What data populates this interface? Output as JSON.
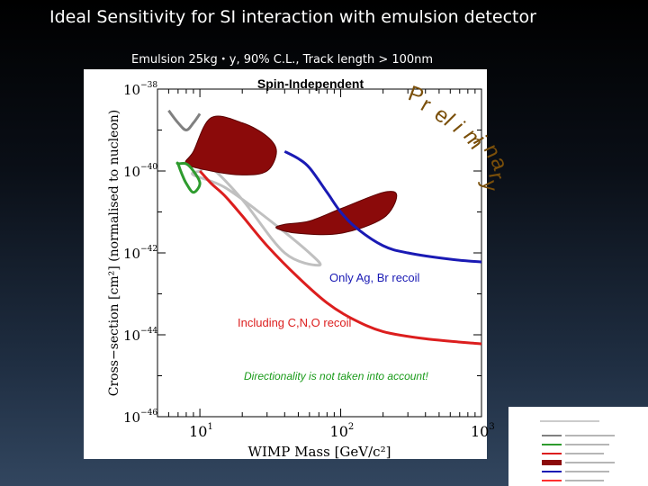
{
  "slide": {
    "title": "Ideal Sensitivity for SI interaction with emulsion detector",
    "subtitle": "Emulsion 25kg・y, 90% C.L., Track length > 100nm"
  },
  "chart_data": {
    "type": "line",
    "title": "Spin-Independent",
    "stamp": "Preliminary",
    "xlabel": "WIMP Mass [GeV/c²]",
    "ylabel": "Cross−section [cm²] (normalised to nucleon)",
    "x_scale": "log",
    "y_scale": "log",
    "xlim": [
      5,
      1000
    ],
    "ylim": [
      1e-46,
      1e-38
    ],
    "x_ticks": [
      {
        "base": "10",
        "exp": "1",
        "value": 10
      },
      {
        "base": "10",
        "exp": "2",
        "value": 100
      },
      {
        "base": "10",
        "exp": "3",
        "value": 1000
      }
    ],
    "y_ticks": [
      {
        "base": "10",
        "exp": "−38",
        "value": 1e-38
      },
      {
        "base": "10",
        "exp": "−40",
        "value": 1e-40
      },
      {
        "base": "10",
        "exp": "−42",
        "value": 1e-42
      },
      {
        "base": "10",
        "exp": "−44",
        "value": 1e-44
      },
      {
        "base": "10",
        "exp": "−46",
        "value": 1e-46
      }
    ],
    "series": [
      {
        "color": "#1a1ab4",
        "x": [
          40,
          50,
          60,
          80,
          100,
          130,
          200,
          300,
          600,
          1000
        ],
        "y": [
          3e-40,
          2e-40,
          1.2e-40,
          3e-41,
          1e-41,
          4e-42,
          1.5e-42,
          1e-42,
          7e-43,
          6e-43
        ]
      },
      {
        "color": "#dc1e1e",
        "x": [
          10,
          12,
          15,
          20,
          30,
          50,
          80,
          120,
          200,
          400,
          1000
        ],
        "y": [
          1e-40,
          5e-41,
          2.5e-41,
          8e-42,
          1.5e-42,
          2.5e-43,
          6e-44,
          2.5e-44,
          1.2e-44,
          8e-45,
          6e-45
        ]
      },
      {
        "color": "#808080",
        "x": [
          6,
          7,
          8,
          9,
          10
        ],
        "y": [
          3e-39,
          1.5e-39,
          1e-39,
          1.5e-39,
          2.5e-39
        ]
      },
      {
        "color": "#2e9b2e",
        "x": [
          7,
          7.5,
          8,
          9,
          10,
          9,
          8,
          7
        ],
        "y": [
          1.5e-40,
          8e-41,
          5e-41,
          3e-41,
          5e-41,
          1e-40,
          1.5e-40,
          1.5e-40
        ]
      }
    ],
    "regions": [
      {
        "color": "#8b0a0a",
        "x": [
          9,
          12,
          20,
          30,
          35,
          30,
          20,
          12,
          8
        ],
        "y": [
          3e-40,
          2e-39,
          1.5e-39,
          7e-40,
          3e-40,
          1e-40,
          8e-41,
          1e-40,
          1.5e-40
        ]
      },
      {
        "color": "#8b0a0a",
        "x": [
          40,
          60,
          100,
          200,
          250,
          200,
          100,
          50,
          35
        ],
        "y": [
          5e-42,
          6e-42,
          1.2e-41,
          3e-41,
          2.5e-41,
          7e-42,
          3e-42,
          3e-42,
          4e-42
        ]
      }
    ],
    "outline_regions": [
      {
        "color": "#c0c0c0",
        "x": [
          10,
          12,
          20,
          40,
          70,
          60,
          30,
          15,
          9
        ],
        "y": [
          1e-40,
          1.2e-40,
          2e-41,
          1e-42,
          5e-43,
          1e-42,
          7e-42,
          4e-41,
          8e-41
        ]
      }
    ],
    "annotations": [
      {
        "text": "Only  Ag, Br recoil",
        "color": "#1a1ab4",
        "italic": false
      },
      {
        "text": "Including C,N,O recoil",
        "color": "#dc1e1e",
        "italic": false
      },
      {
        "text": "Directionality is not taken into account!",
        "color": "#1a9b1a",
        "italic": true
      }
    ],
    "legend": {
      "placement": "bottom-right",
      "entries": [
        {
          "color": "#808080",
          "type": "line"
        },
        {
          "color": "#2e9b2e",
          "type": "line"
        },
        {
          "color": "#dc1e1e",
          "type": "line"
        },
        {
          "color": "#8b0a0a",
          "type": "region"
        },
        {
          "color": "#1a1ab4",
          "type": "line"
        },
        {
          "color": "#ff3030",
          "type": "line"
        }
      ]
    }
  }
}
